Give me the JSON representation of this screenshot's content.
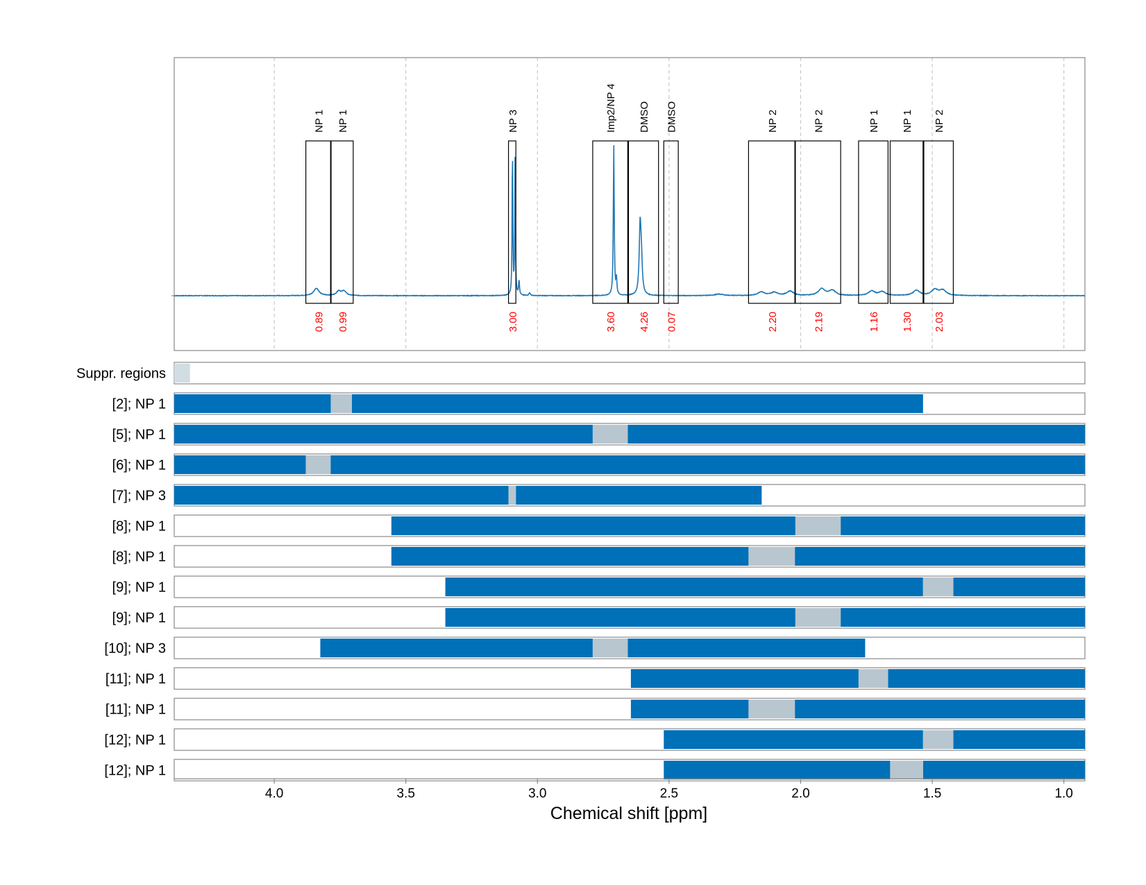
{
  "chart_data": {
    "type": "nmr-spectrum-with-region-bars",
    "xlabel": "Chemical shift [ppm]",
    "xlim": [
      4.38,
      0.92
    ],
    "x_reversed": true,
    "xticks": [
      4.0,
      3.5,
      3.0,
      2.5,
      2.0,
      1.5,
      1.0
    ],
    "xtick_labels": [
      "4.0",
      "3.5",
      "3.0",
      "2.5",
      "2.0",
      "1.5",
      "1.0"
    ],
    "grid": "vertical dashed at ticks",
    "colors": {
      "spectrum": "#1f77b4",
      "bar": "#0070b8",
      "gap": "#b8c6cf",
      "suppressed": "#d2dce3",
      "integral_value": "#ff0000",
      "box": "#000000"
    },
    "spectrum": {
      "baseline": 0,
      "peaks": [
        {
          "ppm": 3.84,
          "height": 0.05,
          "width": 0.012
        },
        {
          "ppm": 3.755,
          "height": 0.03,
          "width": 0.01
        },
        {
          "ppm": 3.735,
          "height": 0.03,
          "width": 0.01
        },
        {
          "ppm": 3.095,
          "height": 1.0,
          "width": 0.0015
        },
        {
          "ppm": 3.085,
          "height": 0.93,
          "width": 0.0015
        },
        {
          "ppm": 3.07,
          "height": 0.1,
          "width": 0.002
        },
        {
          "ppm": 3.03,
          "height": 0.02,
          "width": 0.003
        },
        {
          "ppm": 2.71,
          "height": 1.02,
          "width": 0.002
        },
        {
          "ppm": 2.7,
          "height": 0.11,
          "width": 0.002
        },
        {
          "ppm": 2.61,
          "height": 0.46,
          "width": 0.004
        },
        {
          "ppm": 2.605,
          "height": 0.2,
          "width": 0.004
        },
        {
          "ppm": 2.31,
          "height": 0.01,
          "width": 0.02
        },
        {
          "ppm": 2.15,
          "height": 0.025,
          "width": 0.015
        },
        {
          "ppm": 2.1,
          "height": 0.022,
          "width": 0.015
        },
        {
          "ppm": 2.04,
          "height": 0.03,
          "width": 0.015
        },
        {
          "ppm": 1.92,
          "height": 0.045,
          "width": 0.015
        },
        {
          "ppm": 1.88,
          "height": 0.035,
          "width": 0.015
        },
        {
          "ppm": 1.73,
          "height": 0.03,
          "width": 0.015
        },
        {
          "ppm": 1.69,
          "height": 0.025,
          "width": 0.015
        },
        {
          "ppm": 1.56,
          "height": 0.035,
          "width": 0.015
        },
        {
          "ppm": 1.49,
          "height": 0.04,
          "width": 0.015
        },
        {
          "ppm": 1.46,
          "height": 0.035,
          "width": 0.015
        }
      ]
    },
    "integration_regions": [
      {
        "label": "NP 1",
        "from": 3.88,
        "to": 3.786,
        "value": "0.89"
      },
      {
        "label": "NP 1",
        "from": 3.784,
        "to": 3.7,
        "value": "0.99"
      },
      {
        "label": "NP 3",
        "from": 3.11,
        "to": 3.082,
        "value": "3.00"
      },
      {
        "label": "Imp2/NP 4",
        "from": 2.79,
        "to": 2.657,
        "value": "3.60"
      },
      {
        "label": "DMSO",
        "from": 2.654,
        "to": 2.54,
        "value": "4.26"
      },
      {
        "label": "DMSO",
        "from": 2.52,
        "to": 2.465,
        "value": "0.07"
      },
      {
        "label": "NP 2",
        "from": 2.198,
        "to": 2.022,
        "value": "2.20"
      },
      {
        "label": "NP 2",
        "from": 2.02,
        "to": 1.848,
        "value": "2.19"
      },
      {
        "label": "NP 1",
        "from": 1.78,
        "to": 1.668,
        "value": "1.16"
      },
      {
        "label": "NP 1",
        "from": 1.66,
        "to": 1.535,
        "value": "1.30"
      },
      {
        "label": "NP 2",
        "from": 1.532,
        "to": 1.42,
        "value": "2.03"
      }
    ],
    "suppressed_regions": {
      "label": "Suppr. regions",
      "regions": [
        {
          "from": 4.38,
          "to": 4.32
        }
      ]
    },
    "region_rows": [
      {
        "label": "[2]; NP 1",
        "bars": [
          {
            "from": 4.38,
            "to": 3.785
          },
          {
            "from": 3.705,
            "to": 1.535
          }
        ],
        "gaps": [
          {
            "from": 3.785,
            "to": 3.705
          }
        ]
      },
      {
        "label": "[5]; NP 1",
        "bars": [
          {
            "from": 4.38,
            "to": 2.79
          },
          {
            "from": 2.657,
            "to": 0.92
          }
        ],
        "gaps": [
          {
            "from": 2.79,
            "to": 2.657
          }
        ]
      },
      {
        "label": "[6]; NP 1",
        "bars": [
          {
            "from": 4.38,
            "to": 3.88
          },
          {
            "from": 3.786,
            "to": 0.92
          }
        ],
        "gaps": [
          {
            "from": 3.88,
            "to": 3.786
          }
        ]
      },
      {
        "label": "[7]; NP 3",
        "bars": [
          {
            "from": 4.38,
            "to": 3.11
          },
          {
            "from": 3.082,
            "to": 2.148
          }
        ],
        "gaps": [
          {
            "from": 3.11,
            "to": 3.082
          }
        ]
      },
      {
        "label": "[8]; NP 1",
        "bars": [
          {
            "from": 3.555,
            "to": 2.02
          },
          {
            "from": 1.848,
            "to": 0.92
          }
        ],
        "gaps": [
          {
            "from": 2.02,
            "to": 1.848
          }
        ]
      },
      {
        "label": "[8]; NP 1",
        "bars": [
          {
            "from": 3.555,
            "to": 2.198
          },
          {
            "from": 2.022,
            "to": 0.92
          }
        ],
        "gaps": [
          {
            "from": 2.198,
            "to": 2.022
          }
        ]
      },
      {
        "label": "[9]; NP 1",
        "bars": [
          {
            "from": 3.35,
            "to": 1.535
          },
          {
            "from": 1.42,
            "to": 0.92
          }
        ],
        "gaps": [
          {
            "from": 1.535,
            "to": 1.42
          }
        ]
      },
      {
        "label": "[9]; NP 1",
        "bars": [
          {
            "from": 3.35,
            "to": 2.02
          },
          {
            "from": 1.848,
            "to": 0.92
          }
        ],
        "gaps": [
          {
            "from": 2.02,
            "to": 1.848
          }
        ]
      },
      {
        "label": "[10]; NP 3",
        "bars": [
          {
            "from": 3.825,
            "to": 2.79
          },
          {
            "from": 2.657,
            "to": 1.755
          }
        ],
        "gaps": [
          {
            "from": 2.79,
            "to": 2.657
          }
        ]
      },
      {
        "label": "[11]; NP 1",
        "bars": [
          {
            "from": 2.645,
            "to": 1.78
          },
          {
            "from": 1.668,
            "to": 0.92
          }
        ],
        "gaps": [
          {
            "from": 1.78,
            "to": 1.668
          }
        ]
      },
      {
        "label": "[11]; NP 1",
        "bars": [
          {
            "from": 2.645,
            "to": 2.198
          },
          {
            "from": 2.022,
            "to": 0.92
          }
        ],
        "gaps": [
          {
            "from": 2.198,
            "to": 2.022
          }
        ]
      },
      {
        "label": "[12]; NP 1",
        "bars": [
          {
            "from": 2.52,
            "to": 1.535
          },
          {
            "from": 1.42,
            "to": 0.92
          }
        ],
        "gaps": [
          {
            "from": 1.535,
            "to": 1.42
          }
        ]
      },
      {
        "label": "[12]; NP 1",
        "bars": [
          {
            "from": 2.52,
            "to": 1.66
          },
          {
            "from": 1.535,
            "to": 0.92
          }
        ],
        "gaps": [
          {
            "from": 1.66,
            "to": 1.535
          }
        ]
      }
    ]
  }
}
